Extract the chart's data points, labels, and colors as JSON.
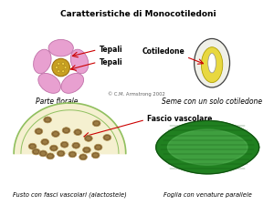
{
  "title": "Caratteristiche di Monocotiledoni",
  "background_color": "#ffffff",
  "labels": {
    "tepali1": "Tepali",
    "tepali2": "Tepali",
    "cotiledon": "Cotiledone",
    "parte_florale": "Parte florale",
    "seme": "Seme con un solo cotiledone",
    "fascio": "Fascio vascolare",
    "fusto": "Fusto con fasci vascolari (alactostele)",
    "foglia": "Foglia con venature parallele",
    "copyright": "© C.M. Armstrong 2002"
  },
  "colors": {
    "flower_petal": "#e8a0d0",
    "flower_petal_edge": "#c070a8",
    "flower_center": "#c8a020",
    "flower_center_dark": "#a07010",
    "stamen": "#f0d040",
    "stamen_edge": "#a08020",
    "seed_outer": "#f0f0e8",
    "seed_outer_edge": "#404040",
    "seed_inner": "#e8d840",
    "seed_inner_edge": "#b0a000",
    "seed_embryo": "#ffffff",
    "seed_embryo_edge": "#909090",
    "stem_bg": "#f5f0d0",
    "stem_border": "#90c060",
    "vascular_dark": "#806030",
    "vascular_light": "#b09050",
    "leaf_dark": "#208020",
    "leaf_light": "#50b050",
    "leaf_vein": "#105010",
    "arrow_color": "#cc0000",
    "text_color": "#000000",
    "copyright_color": "#606060"
  }
}
